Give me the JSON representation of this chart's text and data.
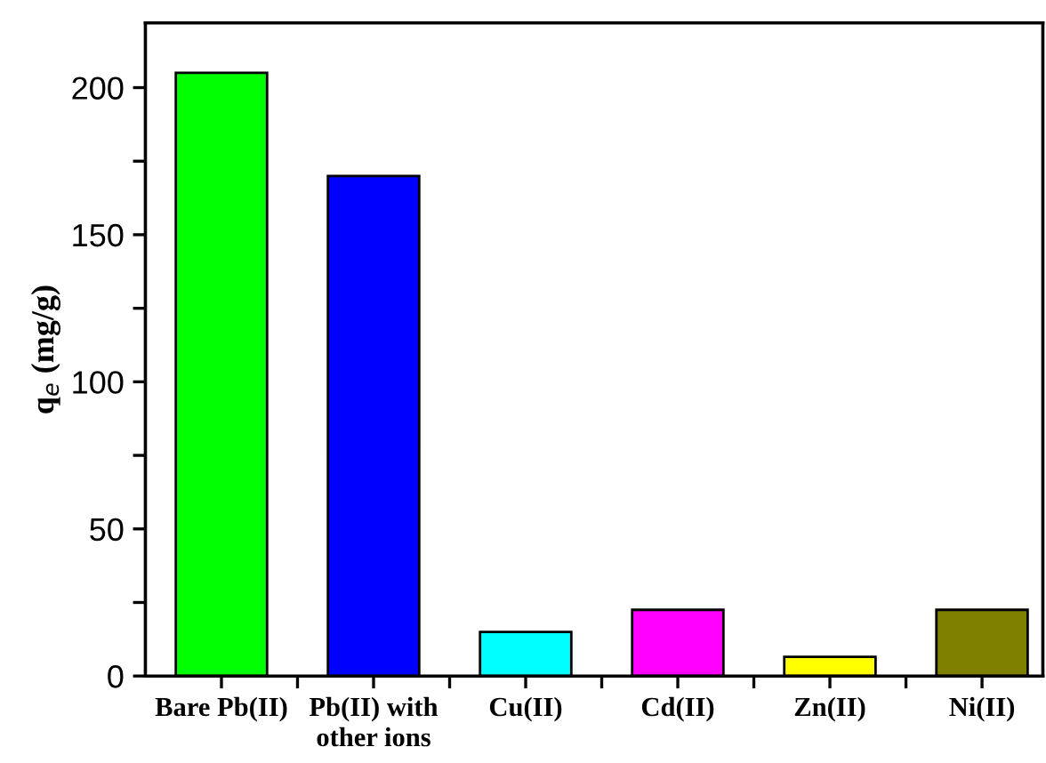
{
  "chart_data": {
    "type": "bar",
    "ylabel": "q$_{e}$ (mg/g)",
    "categories": [
      "Bare Pb(II)",
      "Pb(II) with\nother ions",
      "Cu(II)",
      "Cd(II)",
      "Zn(II)",
      "Ni(II)"
    ],
    "values": [
      205,
      170,
      15,
      22.5,
      6.5,
      22.5
    ],
    "colors": [
      "#00ff00",
      "#0000ff",
      "#00ffff",
      "#ff00ff",
      "#ffff00",
      "#808000"
    ],
    "ylim": [
      0,
      222
    ],
    "yticks": [
      0,
      {
        "value": 25,
        "label": null
      },
      50,
      {
        "value": 75,
        "label": null
      },
      100,
      {
        "value": 125,
        "label": null
      },
      150,
      {
        "value": 175,
        "label": null
      },
      200
    ],
    "grid": false,
    "legend": false
  }
}
